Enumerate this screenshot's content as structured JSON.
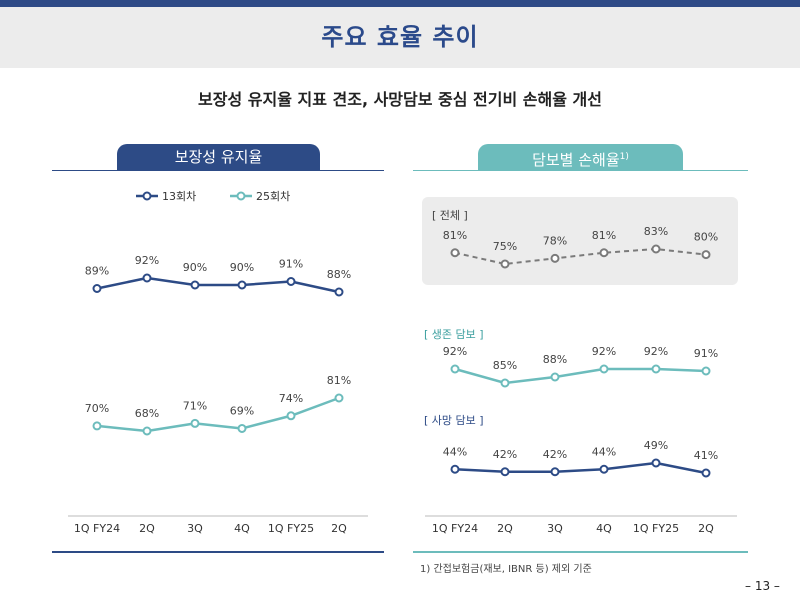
{
  "page": {
    "title": "주요 효율 추이",
    "subtitle": "보장성 유지율 지표 견조, 사망담보 중심 전기비 손해율 개선",
    "footnote": "1) 간접보험금(재보, IBNR 등) 제외 기준",
    "page_number": "– 13 –"
  },
  "left_panel": {
    "title": "보장성 유지율"
  },
  "right_panel": {
    "title": "담보별 손해율",
    "title_sup": "1)"
  },
  "colors": {
    "navy": "#2d4b86",
    "teal": "#6cbcbc",
    "grey_line": "#7a7a7a"
  },
  "chart_data": [
    {
      "type": "line",
      "title": "보장성 유지율",
      "categories": [
        "1Q FY24",
        "2Q",
        "3Q",
        "4Q",
        "1Q FY25",
        "2Q"
      ],
      "legend_position": "top",
      "series": [
        {
          "name": "13회차",
          "values": [
            89,
            92,
            90,
            90,
            91,
            88
          ],
          "labels": [
            "89%",
            "92%",
            "90%",
            "90%",
            "91%",
            "88%"
          ],
          "color": "#2d4b86"
        },
        {
          "name": "25회차",
          "values": [
            70,
            68,
            71,
            69,
            74,
            81
          ],
          "labels": [
            "70%",
            "68%",
            "71%",
            "69%",
            "74%",
            "81%"
          ],
          "color": "#6cbcbc"
        }
      ]
    },
    {
      "type": "line",
      "title": "담보별 손해율",
      "categories": [
        "1Q FY24",
        "2Q",
        "3Q",
        "4Q",
        "1Q FY25",
        "2Q"
      ],
      "series": [
        {
          "name": "[ 전체 ]",
          "values": [
            81,
            75,
            78,
            81,
            83,
            80
          ],
          "labels": [
            "81%",
            "75%",
            "78%",
            "81%",
            "83%",
            "80%"
          ],
          "color": "#7a7a7a",
          "dashed": true
        },
        {
          "name": "[ 생존 담보 ]",
          "values": [
            92,
            85,
            88,
            92,
            92,
            91
          ],
          "labels": [
            "92%",
            "85%",
            "88%",
            "92%",
            "92%",
            "91%"
          ],
          "color": "#6cbcbc"
        },
        {
          "name": "[ 사망 담보 ]",
          "values": [
            44,
            42,
            42,
            44,
            49,
            41
          ],
          "labels": [
            "44%",
            "42%",
            "42%",
            "44%",
            "49%",
            "41%"
          ],
          "color": "#2d4b86"
        }
      ]
    }
  ]
}
